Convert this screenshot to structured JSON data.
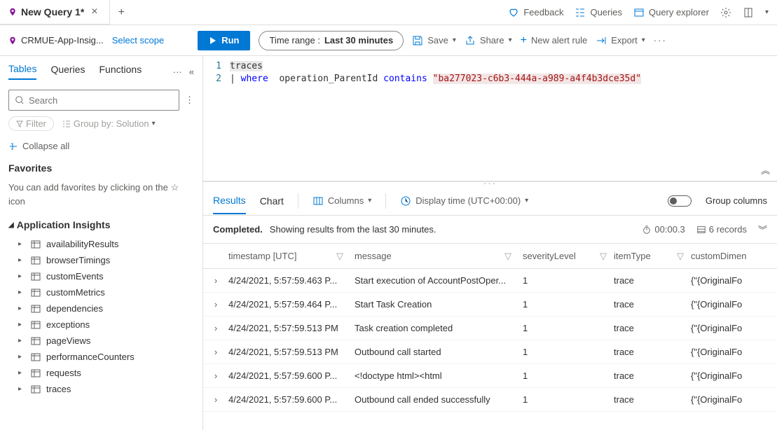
{
  "tab": {
    "title": "New Query 1*"
  },
  "topRight": {
    "feedback": "Feedback",
    "queries": "Queries",
    "explorer": "Query explorer"
  },
  "scope": {
    "name": "CRMUE-App-Insig...",
    "select": "Select scope",
    "run": "Run",
    "timeRangeLabel": "Time range :",
    "timeRangeValue": "Last 30 minutes",
    "save": "Save",
    "share": "Share",
    "newAlert": "New alert rule",
    "export": "Export"
  },
  "sidebar": {
    "tabs": [
      "Tables",
      "Queries",
      "Functions"
    ],
    "searchPlaceholder": "Search",
    "filter": "Filter",
    "groupBy": "Group by: Solution",
    "collapse": "Collapse all",
    "favTitle": "Favorites",
    "favDesc": "You can add favorites by clicking on the ☆ icon",
    "treeHeader": "Application Insights",
    "items": [
      "availabilityResults",
      "browserTimings",
      "customEvents",
      "customMetrics",
      "dependencies",
      "exceptions",
      "pageViews",
      "performanceCounters",
      "requests",
      "traces"
    ]
  },
  "editor": {
    "line1": "traces",
    "pipe": "|",
    "kw": "where",
    "field": "operation_ParentId",
    "op": "contains",
    "str": "\"ba277023-c6b3-444a-a989-a4f4b3dce35d\""
  },
  "results": {
    "tabs": [
      "Results",
      "Chart"
    ],
    "columnsBtn": "Columns",
    "displayTime": "Display time (UTC+00:00)",
    "groupCols": "Group columns",
    "statusLabel": "Completed.",
    "statusText": "Showing results from the last 30 minutes.",
    "duration": "00:00.3",
    "records": "6 records",
    "headers": {
      "timestamp": "timestamp [UTC]",
      "message": "message",
      "severity": "severityLevel",
      "itemType": "itemType",
      "custom": "customDimen"
    },
    "rows": [
      {
        "ts": "4/24/2021, 5:57:59.463 P...",
        "msg": "Start execution of AccountPostOper...",
        "sev": "1",
        "type": "trace",
        "cust": "{\"{OriginalFo"
      },
      {
        "ts": "4/24/2021, 5:57:59.464 P...",
        "msg": "Start Task Creation",
        "sev": "1",
        "type": "trace",
        "cust": "{\"{OriginalFo"
      },
      {
        "ts": "4/24/2021, 5:57:59.513 PM",
        "msg": "Task creation completed",
        "sev": "1",
        "type": "trace",
        "cust": "{\"{OriginalFo"
      },
      {
        "ts": "4/24/2021, 5:57:59.513 PM",
        "msg": "Outbound call started",
        "sev": "1",
        "type": "trace",
        "cust": "{\"{OriginalFo"
      },
      {
        "ts": "4/24/2021, 5:57:59.600 P...",
        "msg": "<!doctype html><html",
        "sev": "1",
        "type": "trace",
        "cust": "{\"{OriginalFo"
      },
      {
        "ts": "4/24/2021, 5:57:59.600 P...",
        "msg": "Outbound call ended successfully",
        "sev": "1",
        "type": "trace",
        "cust": "{\"{OriginalFo"
      }
    ]
  },
  "colors": {
    "primary": "#0078d4",
    "border": "#e1dfdd",
    "textMuted": "#605e5c",
    "keyword": "#0000ff",
    "string": "#a31515"
  }
}
